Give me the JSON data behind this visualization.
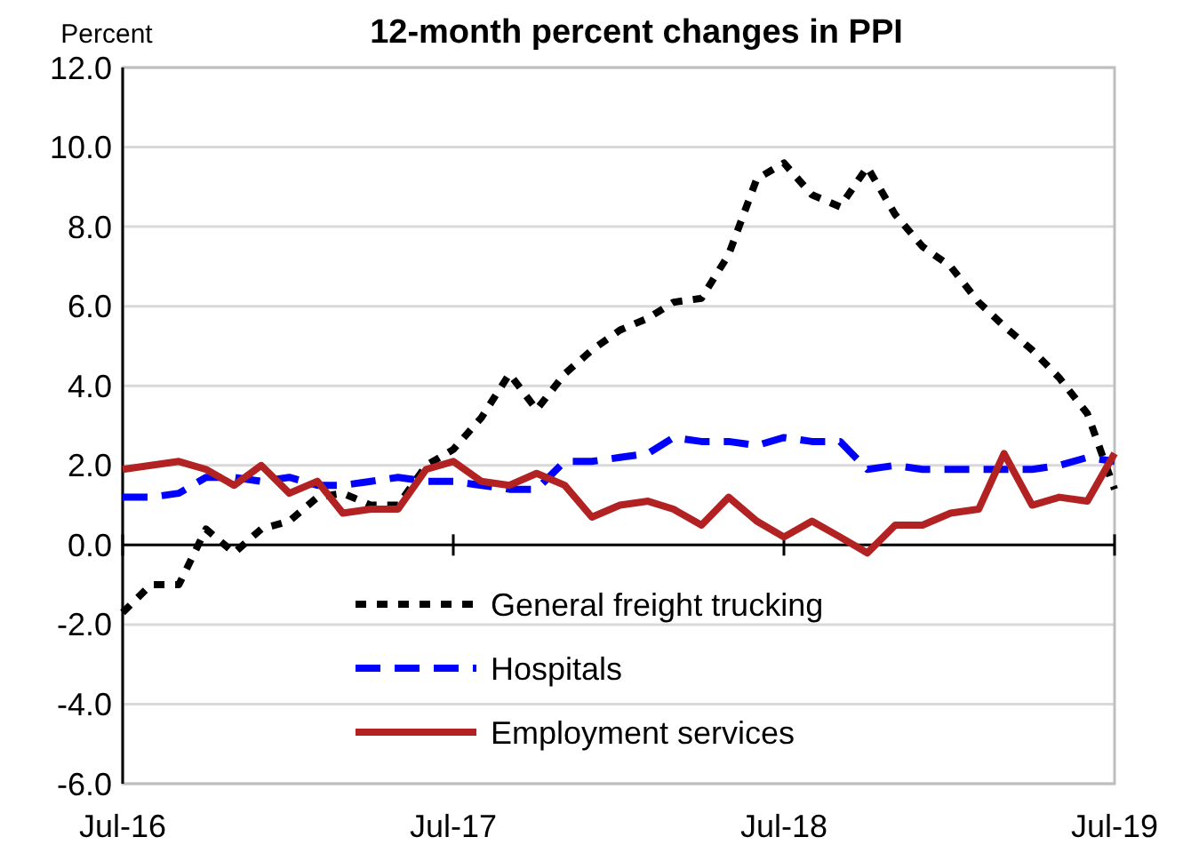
{
  "chart_data": {
    "type": "line",
    "title": "12-month percent changes in PPI",
    "ylabel": "Percent",
    "x": [
      "2016-07",
      "2016-08",
      "2016-09",
      "2016-10",
      "2016-11",
      "2016-12",
      "2017-01",
      "2017-02",
      "2017-03",
      "2017-04",
      "2017-05",
      "2017-06",
      "2017-07",
      "2017-08",
      "2017-09",
      "2017-10",
      "2017-11",
      "2017-12",
      "2018-01",
      "2018-02",
      "2018-03",
      "2018-04",
      "2018-05",
      "2018-06",
      "2018-07",
      "2018-08",
      "2018-09",
      "2018-10",
      "2018-11",
      "2018-12",
      "2019-01",
      "2019-02",
      "2019-03",
      "2019-04",
      "2019-05",
      "2019-06",
      "2019-07"
    ],
    "series": [
      {
        "name": "General freight trucking",
        "color": "#000000",
        "line_style": "dotted",
        "values": [
          -1.7,
          -1.0,
          -1.0,
          0.4,
          -0.2,
          0.4,
          0.6,
          1.2,
          1.3,
          1.0,
          1.0,
          2.0,
          2.4,
          3.2,
          4.3,
          3.4,
          4.3,
          4.9,
          5.4,
          5.7,
          6.1,
          6.2,
          7.3,
          9.2,
          9.6,
          8.8,
          8.5,
          9.5,
          8.3,
          7.5,
          7.0,
          6.1,
          5.5,
          4.9,
          4.2,
          3.3,
          1.4
        ]
      },
      {
        "name": "Hospitals",
        "color": "#0000ff",
        "line_style": "dashed",
        "values": [
          1.2,
          1.2,
          1.3,
          1.7,
          1.7,
          1.6,
          1.7,
          1.5,
          1.5,
          1.6,
          1.7,
          1.6,
          1.6,
          1.5,
          1.4,
          1.4,
          2.1,
          2.1,
          2.2,
          2.3,
          2.7,
          2.6,
          2.6,
          2.5,
          2.7,
          2.6,
          2.6,
          1.9,
          2.0,
          1.9,
          1.9,
          1.9,
          1.9,
          1.9,
          2.0,
          2.2,
          2.1
        ]
      },
      {
        "name": "Employment services",
        "color": "#b22222",
        "line_style": "solid",
        "values": [
          1.9,
          2.0,
          2.1,
          1.9,
          1.5,
          2.0,
          1.3,
          1.6,
          0.8,
          0.9,
          0.9,
          1.9,
          2.1,
          1.6,
          1.5,
          1.8,
          1.5,
          0.7,
          1.0,
          1.1,
          0.9,
          0.5,
          1.2,
          0.6,
          0.2,
          0.6,
          0.2,
          -0.2,
          0.5,
          0.5,
          0.8,
          0.9,
          2.3,
          1.0,
          1.2,
          1.1,
          2.3
        ]
      }
    ],
    "xlim": [
      "2016-07",
      "2019-07"
    ],
    "xticks": [
      {
        "value": "2016-07",
        "label": "Jul-16"
      },
      {
        "value": "2017-07",
        "label": "Jul-17"
      },
      {
        "value": "2018-07",
        "label": "Jul-18"
      },
      {
        "value": "2019-07",
        "label": "Jul-19"
      }
    ],
    "ylim": [
      -6,
      12
    ],
    "yticks": [
      {
        "value": -6,
        "label": "-6.0"
      },
      {
        "value": -4,
        "label": "-4.0"
      },
      {
        "value": -2,
        "label": "-2.0"
      },
      {
        "value": 0,
        "label": "0.0"
      },
      {
        "value": 2,
        "label": "2.0"
      },
      {
        "value": 4,
        "label": "4.0"
      },
      {
        "value": 6,
        "label": "6.0"
      },
      {
        "value": 8,
        "label": "8.0"
      },
      {
        "value": 10,
        "label": "10.0"
      },
      {
        "value": 12,
        "label": "12.0"
      }
    ],
    "grid": "y",
    "legend": "bottom"
  }
}
